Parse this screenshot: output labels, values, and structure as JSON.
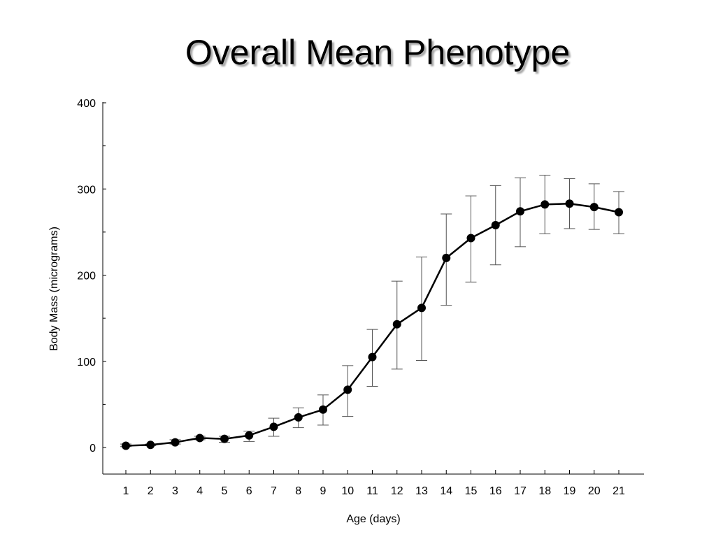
{
  "title": "Overall Mean Phenotype",
  "chart_data": {
    "type": "line",
    "xlabel": "Age (days)",
    "ylabel": "Body Mass (micrograms)",
    "x": [
      1,
      2,
      3,
      4,
      5,
      6,
      7,
      8,
      9,
      10,
      11,
      12,
      13,
      14,
      15,
      16,
      17,
      18,
      19,
      20,
      21
    ],
    "ylim": [
      -30,
      400
    ],
    "yticks": [
      0,
      100,
      200,
      300,
      400
    ],
    "grid": false,
    "legend": "none",
    "series": [
      {
        "values": [
          2,
          3,
          6,
          11,
          10,
          14,
          24,
          35,
          44,
          67,
          105,
          143,
          162,
          220,
          243,
          258,
          274,
          282,
          283,
          279,
          273
        ],
        "error_low": [
          1,
          2,
          4,
          9,
          6,
          7,
          13,
          23,
          26,
          36,
          71,
          91,
          101,
          165,
          192,
          212,
          233,
          248,
          254,
          253,
          248
        ],
        "error_high": [
          4,
          4,
          9,
          13,
          13,
          19,
          34,
          46,
          61,
          95,
          137,
          193,
          221,
          271,
          292,
          304,
          313,
          316,
          312,
          306,
          297
        ],
        "color": "#000000"
      }
    ]
  }
}
